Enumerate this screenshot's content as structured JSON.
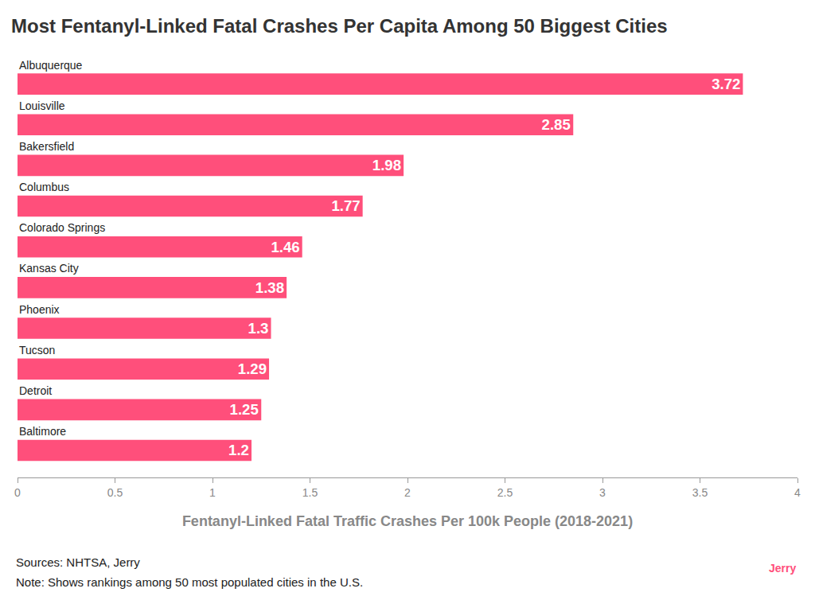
{
  "chart_data": {
    "type": "bar",
    "orientation": "horizontal",
    "title": "Most Fentanyl-Linked Fatal Crashes Per Capita Among 50 Biggest Cities",
    "xlabel": "Fentanyl-Linked Fatal Traffic Crashes Per 100k People (2018-2021)",
    "categories": [
      "Albuquerque",
      "Louisville",
      "Bakersfield",
      "Columbus",
      "Colorado Springs",
      "Kansas City",
      "Phoenix",
      "Tucson",
      "Detroit",
      "Baltimore"
    ],
    "values": [
      3.72,
      2.85,
      1.98,
      1.77,
      1.46,
      1.38,
      1.3,
      1.29,
      1.25,
      1.2
    ],
    "color": "#ff4f7b",
    "xlim": [
      0,
      4
    ],
    "xticks": [
      0,
      0.5,
      1,
      1.5,
      2,
      2.5,
      3,
      3.5,
      4
    ],
    "grid": false,
    "data_labels": true,
    "notes": [
      "Sources: NHTSA, Jerry",
      "Note: Shows rankings among 50 most populated cities in the U.S."
    ],
    "brand": "Jerry"
  }
}
